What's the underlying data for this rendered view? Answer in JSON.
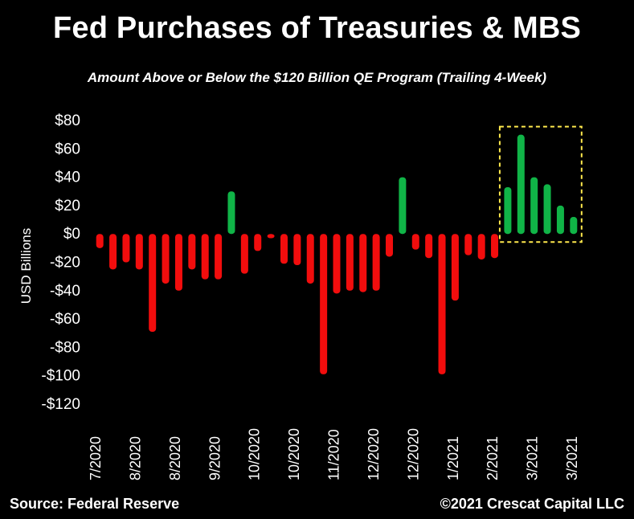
{
  "chart_data": {
    "type": "bar",
    "title": "Fed Purchases of Treasuries & MBS",
    "subtitle": "Amount Above or Below the $120 Billion QE Program (Trailing 4-Week)",
    "ylabel": "USD  Billions",
    "ylim": [
      -120,
      80
    ],
    "yticks": [
      80,
      60,
      40,
      20,
      0,
      -20,
      -40,
      -60,
      -80,
      -100,
      -120
    ],
    "ytick_labels": [
      "$80",
      "$60",
      "$40",
      "$20",
      "$0",
      "-$20",
      "-$40",
      "-$60",
      "-$80",
      "-$100",
      "-$120"
    ],
    "x_tick_labels": [
      "7/2020",
      "8/2020",
      "8/2020",
      "9/2020",
      "10/2020",
      "10/2020",
      "11/2020",
      "12/2020",
      "12/2020",
      "1/2021",
      "2/2021",
      "3/2021",
      "3/2021"
    ],
    "values": [
      -10,
      -25,
      -20,
      -25,
      -69,
      -35,
      -40,
      -25,
      -32,
      -32,
      30,
      -28,
      -12,
      -3,
      -21,
      -22,
      -35,
      -99,
      -42,
      -40,
      -41,
      -40,
      -16,
      40,
      -11,
      -17,
      -99,
      -47,
      -15,
      -18,
      -17,
      33,
      70,
      40,
      35,
      20,
      12
    ],
    "colors": {
      "positive": "#10b447",
      "negative": "#f20d0d",
      "highlight_box": "#ffe94d"
    },
    "grid": false,
    "legend": "none"
  },
  "footer": {
    "source": "Source: Federal Reserve",
    "copyright": "©2021 Crescat Capital LLC"
  }
}
